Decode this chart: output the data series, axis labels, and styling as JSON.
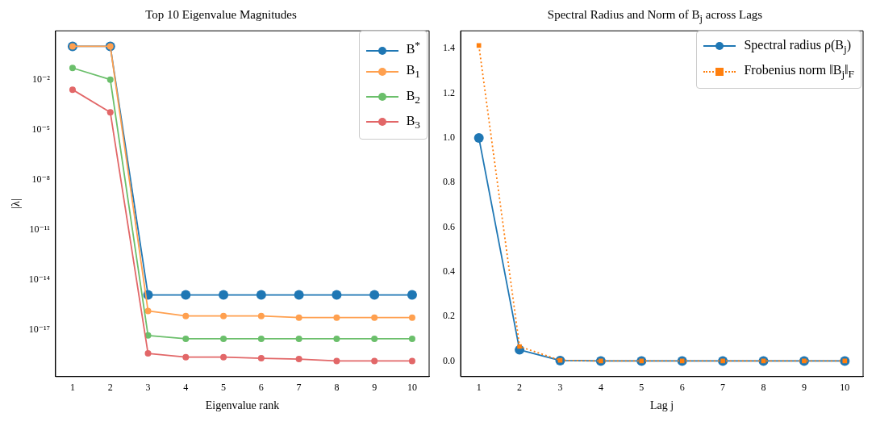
{
  "chart_data": [
    {
      "type": "line",
      "title": "Top 10 Eigenvalue Magnitudes",
      "xlabel": "Eigenvalue rank",
      "ylabel": "|λ|",
      "log": "y",
      "grid": false,
      "legend": "top right",
      "marker": "circle",
      "line_style": "solid",
      "x": [
        1,
        2,
        3,
        4,
        5,
        6,
        7,
        8,
        9,
        10
      ],
      "xlim": [
        0.55,
        10.45
      ],
      "xticks": [
        1,
        2,
        3,
        4,
        5,
        6,
        7,
        8,
        9,
        10
      ],
      "ylim": [
        1.5e-20,
        8.5
      ],
      "yticks": [
        {
          "value": 0.01,
          "label": "10⁻²"
        },
        {
          "value": 1e-05,
          "label": "10⁻⁵"
        },
        {
          "value": 1e-08,
          "label": "10⁻⁸"
        },
        {
          "value": 1e-11,
          "label": "10⁻¹¹"
        },
        {
          "value": 1e-14,
          "label": "10⁻¹⁴"
        },
        {
          "value": 1e-17,
          "label": "10⁻¹⁷"
        }
      ],
      "series": [
        {
          "name": "B$^{*}$",
          "color": "#1f77b4",
          "values": [
            1,
            1,
            1.2e-15,
            1.2e-15,
            1.2e-15,
            1.2e-15,
            1.2e-15,
            1.2e-15,
            1.2e-15,
            1.2e-15
          ]
        },
        {
          "name": "B$_{1}$",
          "color": "#ffa04f",
          "values": [
            1,
            1,
            1.3e-16,
            6.5e-17,
            6.5e-17,
            6.5e-17,
            5.2e-17,
            5.2e-17,
            5.2e-17,
            5.2e-17
          ]
        },
        {
          "name": "B$_{2}$",
          "color": "#6bbf6b",
          "values": [
            0.05,
            0.01,
            4.4e-18,
            2.8e-18,
            2.8e-18,
            2.8e-18,
            2.8e-18,
            2.8e-18,
            2.8e-18,
            2.8e-18
          ]
        },
        {
          "name": "B$_{3}$",
          "color": "#e26768",
          "values": [
            0.0025,
            0.00011,
            3.7e-19,
            2.2e-19,
            2.2e-19,
            1.9e-19,
            1.7e-19,
            1.3e-19,
            1.3e-19,
            1.3e-19
          ]
        }
      ]
    },
    {
      "type": "line",
      "title": "Spectral Radius and Norm of B$_{j}$ across Lags",
      "xlabel": "Lag j",
      "grid": false,
      "legend": "top right",
      "x": [
        1,
        2,
        3,
        4,
        5,
        6,
        7,
        8,
        9,
        10
      ],
      "xlim": [
        0.55,
        10.45
      ],
      "xticks": [
        1,
        2,
        3,
        4,
        5,
        6,
        7,
        8,
        9,
        10
      ],
      "ylim": [
        -0.07,
        1.48
      ],
      "yticks": [
        {
          "value": 0,
          "label": "0.0"
        },
        {
          "value": 0.2,
          "label": "0.2"
        },
        {
          "value": 0.4,
          "label": "0.4"
        },
        {
          "value": 0.6,
          "label": "0.6"
        },
        {
          "value": 0.8,
          "label": "0.8"
        },
        {
          "value": 1,
          "label": "1.0"
        },
        {
          "value": 1.2,
          "label": "1.2"
        },
        {
          "value": 1.4,
          "label": "1.4"
        }
      ],
      "series": [
        {
          "name": "Spectral radius ρ(B$_{j}$)",
          "color": "#1f77b4",
          "marker": "circle",
          "line_style": "solid",
          "values": [
            1,
            0.05,
            0.002,
            0,
            0,
            0,
            0,
            0,
            0,
            0
          ]
        },
        {
          "name": "Frobenius norm ‖B$_{j}$‖$_{F}$",
          "color": "#ff7f0e",
          "marker": "square",
          "line_style": "dotted",
          "values": [
            1.414,
            0.065,
            0.003,
            0,
            0,
            0,
            0,
            0,
            0,
            0
          ]
        }
      ]
    }
  ]
}
